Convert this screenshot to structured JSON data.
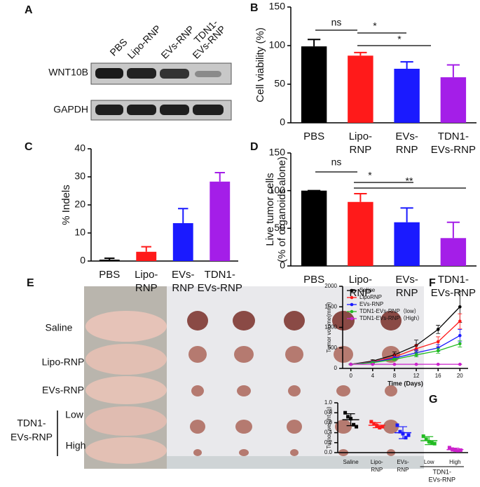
{
  "blot": {
    "panel": "A",
    "lanes": [
      "PBS",
      "Lipo-RNP",
      "EVs-RNP",
      [
        "TDN1-",
        "EVs-RNP"
      ]
    ],
    "rows": [
      "WNT10B",
      "GAPDH"
    ]
  },
  "photo": {
    "panel": "E",
    "groups": [
      "Saline",
      "Lipo-RNP",
      "EVs-RNP"
    ],
    "group_label": [
      "TDN1-",
      "EVs-RNP"
    ],
    "subgroups": [
      "Low",
      "High"
    ]
  },
  "chart_data": [
    {
      "type": "bar",
      "panel": "B",
      "ylabel": [
        "Cell viability (%)"
      ],
      "categories": [
        [
          "PBS"
        ],
        [
          "Lipo-",
          "RNP"
        ],
        [
          "EVs-",
          "RNP"
        ],
        [
          "TDN1-",
          "EVs-RNP"
        ]
      ],
      "values": [
        99,
        87,
        70,
        59
      ],
      "errors": [
        9,
        4,
        9,
        16
      ],
      "colors": [
        "#000000",
        "#ff1a1a",
        "#1a1aff",
        "#a41ee8"
      ],
      "ylim": [
        0,
        150
      ],
      "yticks": [
        0,
        50,
        100,
        150
      ],
      "annotations": [
        "ns",
        "*",
        "*"
      ]
    },
    {
      "type": "bar",
      "panel": "C",
      "ylabel": [
        "% Indels"
      ],
      "categories": [
        [
          "PBS"
        ],
        [
          "Lipo-",
          "RNP"
        ],
        [
          "EVs-",
          "RNP"
        ],
        [
          "TDN1-",
          "EVs-RNP"
        ]
      ],
      "values": [
        0.5,
        3.3,
        13.5,
        28.3
      ],
      "errors": [
        0.5,
        1.8,
        5.2,
        3.2
      ],
      "colors": [
        "#000000",
        "#ff1a1a",
        "#1a1aff",
        "#a41ee8"
      ],
      "ylim": [
        0,
        40
      ],
      "yticks": [
        0,
        10,
        20,
        30,
        40
      ],
      "annotations": []
    },
    {
      "type": "bar",
      "panel": "D",
      "ylabel": [
        "Live tumor cells",
        "(% of organoids alone)"
      ],
      "categories": [
        [
          "PBS"
        ],
        [
          "Lipo-",
          "RNP"
        ],
        [
          "EVs-",
          "RNP"
        ],
        [
          "TDN1-",
          "EVs-RNP"
        ]
      ],
      "values": [
        100,
        85,
        58,
        37
      ],
      "errors": [
        0,
        11,
        19,
        21
      ],
      "colors": [
        "#000000",
        "#ff1a1a",
        "#1a1aff",
        "#a41ee8"
      ],
      "ylim": [
        0,
        150
      ],
      "yticks": [
        0,
        50,
        100,
        150
      ],
      "annotations": [
        "ns",
        "*",
        "**"
      ]
    },
    {
      "type": "line",
      "panel": "F",
      "ylabel": [
        "Tumor volume(mm³)"
      ],
      "xlabel": "Time (Days)",
      "x": [
        0,
        4,
        8,
        12,
        16,
        20
      ],
      "xlim": [
        -1.5,
        21.5
      ],
      "xticks": [
        0,
        4,
        8,
        12,
        16,
        20
      ],
      "ylim": [
        0,
        2000
      ],
      "yticks": [
        0,
        500,
        1000,
        1500,
        2000
      ],
      "series": [
        {
          "name": "Saline",
          "color": "#000000",
          "values": [
            100,
            180,
            330,
            560,
            950,
            1500
          ],
          "errors": [
            10,
            30,
            70,
            130,
            100,
            380
          ]
        },
        {
          "name": "LipoRNP",
          "color": "#ff1a1a",
          "values": [
            100,
            160,
            280,
            480,
            650,
            1150
          ],
          "errors": [
            10,
            25,
            60,
            90,
            120,
            180
          ]
        },
        {
          "name": "EVs-RNP",
          "color": "#1a1aff",
          "values": [
            100,
            150,
            250,
            380,
            500,
            800
          ],
          "errors": [
            10,
            20,
            40,
            70,
            80,
            150
          ]
        },
        {
          "name": "TDN1-EVs-RNP（low）",
          "color": "#22bb22",
          "values": [
            100,
            140,
            220,
            330,
            430,
            600
          ],
          "errors": [
            10,
            20,
            30,
            50,
            60,
            80
          ]
        },
        {
          "name": "TDN1-EVs-RNP（High）",
          "color": "#cc22cc",
          "values": [
            100,
            100,
            100,
            100,
            100,
            100
          ],
          "errors": [
            5,
            5,
            5,
            5,
            5,
            5
          ]
        }
      ]
    },
    {
      "type": "dot",
      "panel": "G",
      "ylabel": [
        "Tumor weight (g)"
      ],
      "categories": [
        [
          "Saline"
        ],
        [
          "Lipo-",
          "RNP"
        ],
        [
          "EVs-",
          "RNP"
        ],
        [
          "Low"
        ],
        [
          "High"
        ]
      ],
      "group_label": [
        "TDN1-",
        "EVs-RNP"
      ],
      "values": [
        [
          0.8,
          0.72,
          0.68,
          0.56,
          0.52
        ],
        [
          0.62,
          0.58,
          0.54,
          0.5,
          0.52
        ],
        [
          0.55,
          0.42,
          0.38,
          0.3,
          0.35
        ],
        [
          0.33,
          0.27,
          0.22,
          0.2,
          0.18
        ],
        [
          0.1,
          0.07,
          0.05,
          0.04,
          0.05
        ]
      ],
      "means": [
        0.66,
        0.55,
        0.4,
        0.24,
        0.06
      ],
      "sds": [
        0.12,
        0.05,
        0.12,
        0.08,
        0.03
      ],
      "colors": [
        "#000000",
        "#ff1a1a",
        "#1a1aff",
        "#22bb22",
        "#cc22cc"
      ],
      "ylim": [
        0,
        1.0
      ],
      "yticks": [
        {
          "value": 0,
          "label": "0.0"
        },
        {
          "value": 0.2,
          "label": "0.2"
        },
        {
          "value": 0.4,
          "label": "0.4"
        },
        {
          "value": 0.6,
          "label": "0.6"
        },
        {
          "value": 0.8,
          "label": "0.8"
        },
        {
          "value": 1.0,
          "label": "1.0"
        }
      ]
    }
  ]
}
